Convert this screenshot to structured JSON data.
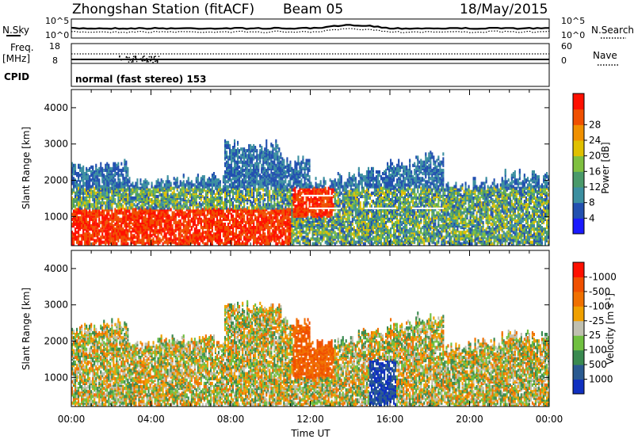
{
  "header": {
    "station": "Zhongshan Station (fitACF)",
    "beam": "Beam 05",
    "date": "18/May/2015"
  },
  "nsky_panel": {
    "left_label": "N.Sky",
    "right_label": "N.Search",
    "left_ticks": [
      "10^5",
      "10^0"
    ],
    "right_ticks": [
      "10^5",
      "10^0"
    ]
  },
  "freq_panel": {
    "left_label_1": "Freq.",
    "left_label_2": "[MHz]",
    "left_ticks": [
      "18",
      "8"
    ],
    "right_ticks": [
      "60",
      "0"
    ],
    "right_label": "Nave",
    "cpid_label": "CPID",
    "mode_text": "normal (fast stereo) 153"
  },
  "chart_data": [
    {
      "type": "heatmap",
      "title": "",
      "ylabel": "Slant Range [km]",
      "xlabel": "",
      "ylim": [
        200,
        4500
      ],
      "yticks": [
        "1000",
        "2000",
        "3000",
        "4000"
      ],
      "xticks": [
        "00:00",
        "04:00",
        "08:00",
        "12:00",
        "16:00",
        "20:00",
        "00:00"
      ],
      "colorbar": {
        "label": "Power [dB]",
        "ticks": [
          "4",
          "8",
          "12",
          "16",
          "20",
          "24",
          "28"
        ],
        "colors": [
          "#1a1aff",
          "#2250b0",
          "#3c8fa0",
          "#4a9a6a",
          "#7fc040",
          "#e0c000",
          "#f09000",
          "#f05000",
          "#ff1000"
        ]
      }
    },
    {
      "type": "heatmap",
      "title": "",
      "ylabel": "Slant Range [km]",
      "xlabel": "Time UT",
      "ylim": [
        200,
        4500
      ],
      "yticks": [
        "1000",
        "2000",
        "3000",
        "4000"
      ],
      "xticks": [
        "00:00",
        "04:00",
        "08:00",
        "12:00",
        "16:00",
        "20:00",
        "00:00"
      ],
      "colorbar": {
        "label": "Velocity [m s^-1]",
        "ticks": [
          "1000",
          "500",
          "100",
          "25",
          "-25",
          "-100",
          "-500",
          "-1000"
        ],
        "colors": [
          "#1030c0",
          "#2a5a90",
          "#3a8a50",
          "#70c040",
          "#c0c0b0",
          "#f0a000",
          "#f07000",
          "#f05000",
          "#ff1000"
        ]
      }
    }
  ]
}
